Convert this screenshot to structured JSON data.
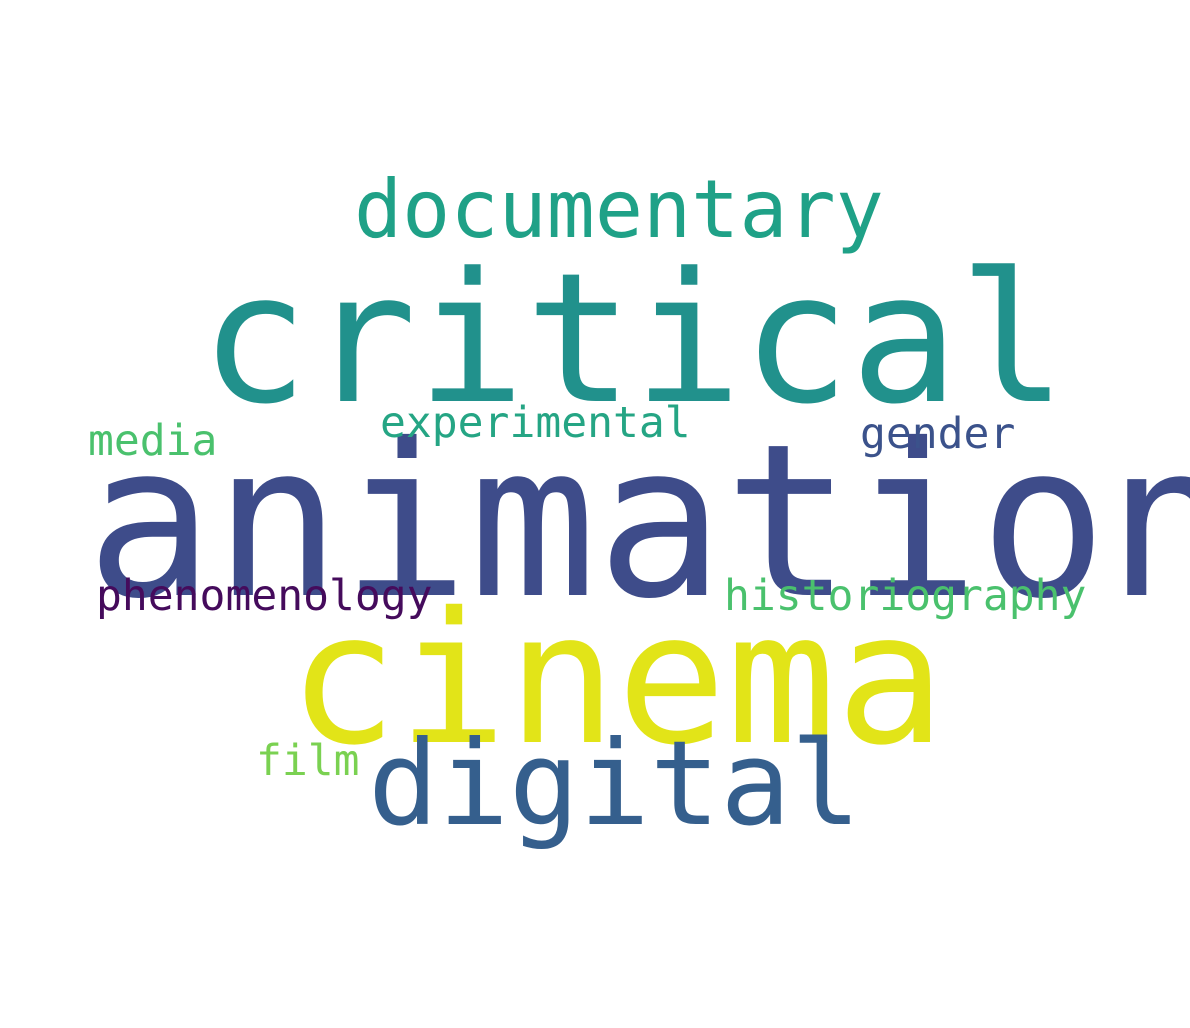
{
  "words": [
    {
      "key": "animation",
      "text": "animation",
      "color": "#3e4c8a"
    },
    {
      "key": "critical",
      "text": "critical",
      "color": "#21918c"
    },
    {
      "key": "cinema",
      "text": "cinema",
      "color": "#e2e418"
    },
    {
      "key": "digital",
      "text": "digital",
      "color": "#355f8d"
    },
    {
      "key": "documentary",
      "text": "documentary",
      "color": "#1fa187"
    },
    {
      "key": "experimental",
      "text": "experimental",
      "color": "#25a584"
    },
    {
      "key": "gender",
      "text": "gender",
      "color": "#3b528b"
    },
    {
      "key": "media",
      "text": "media",
      "color": "#4ac16d"
    },
    {
      "key": "phenomenology",
      "text": "phenomenology",
      "color": "#450b5c"
    },
    {
      "key": "historiography",
      "text": "historiography",
      "color": "#4ac16d"
    },
    {
      "key": "film",
      "text": "film",
      "color": "#7ad151"
    }
  ]
}
